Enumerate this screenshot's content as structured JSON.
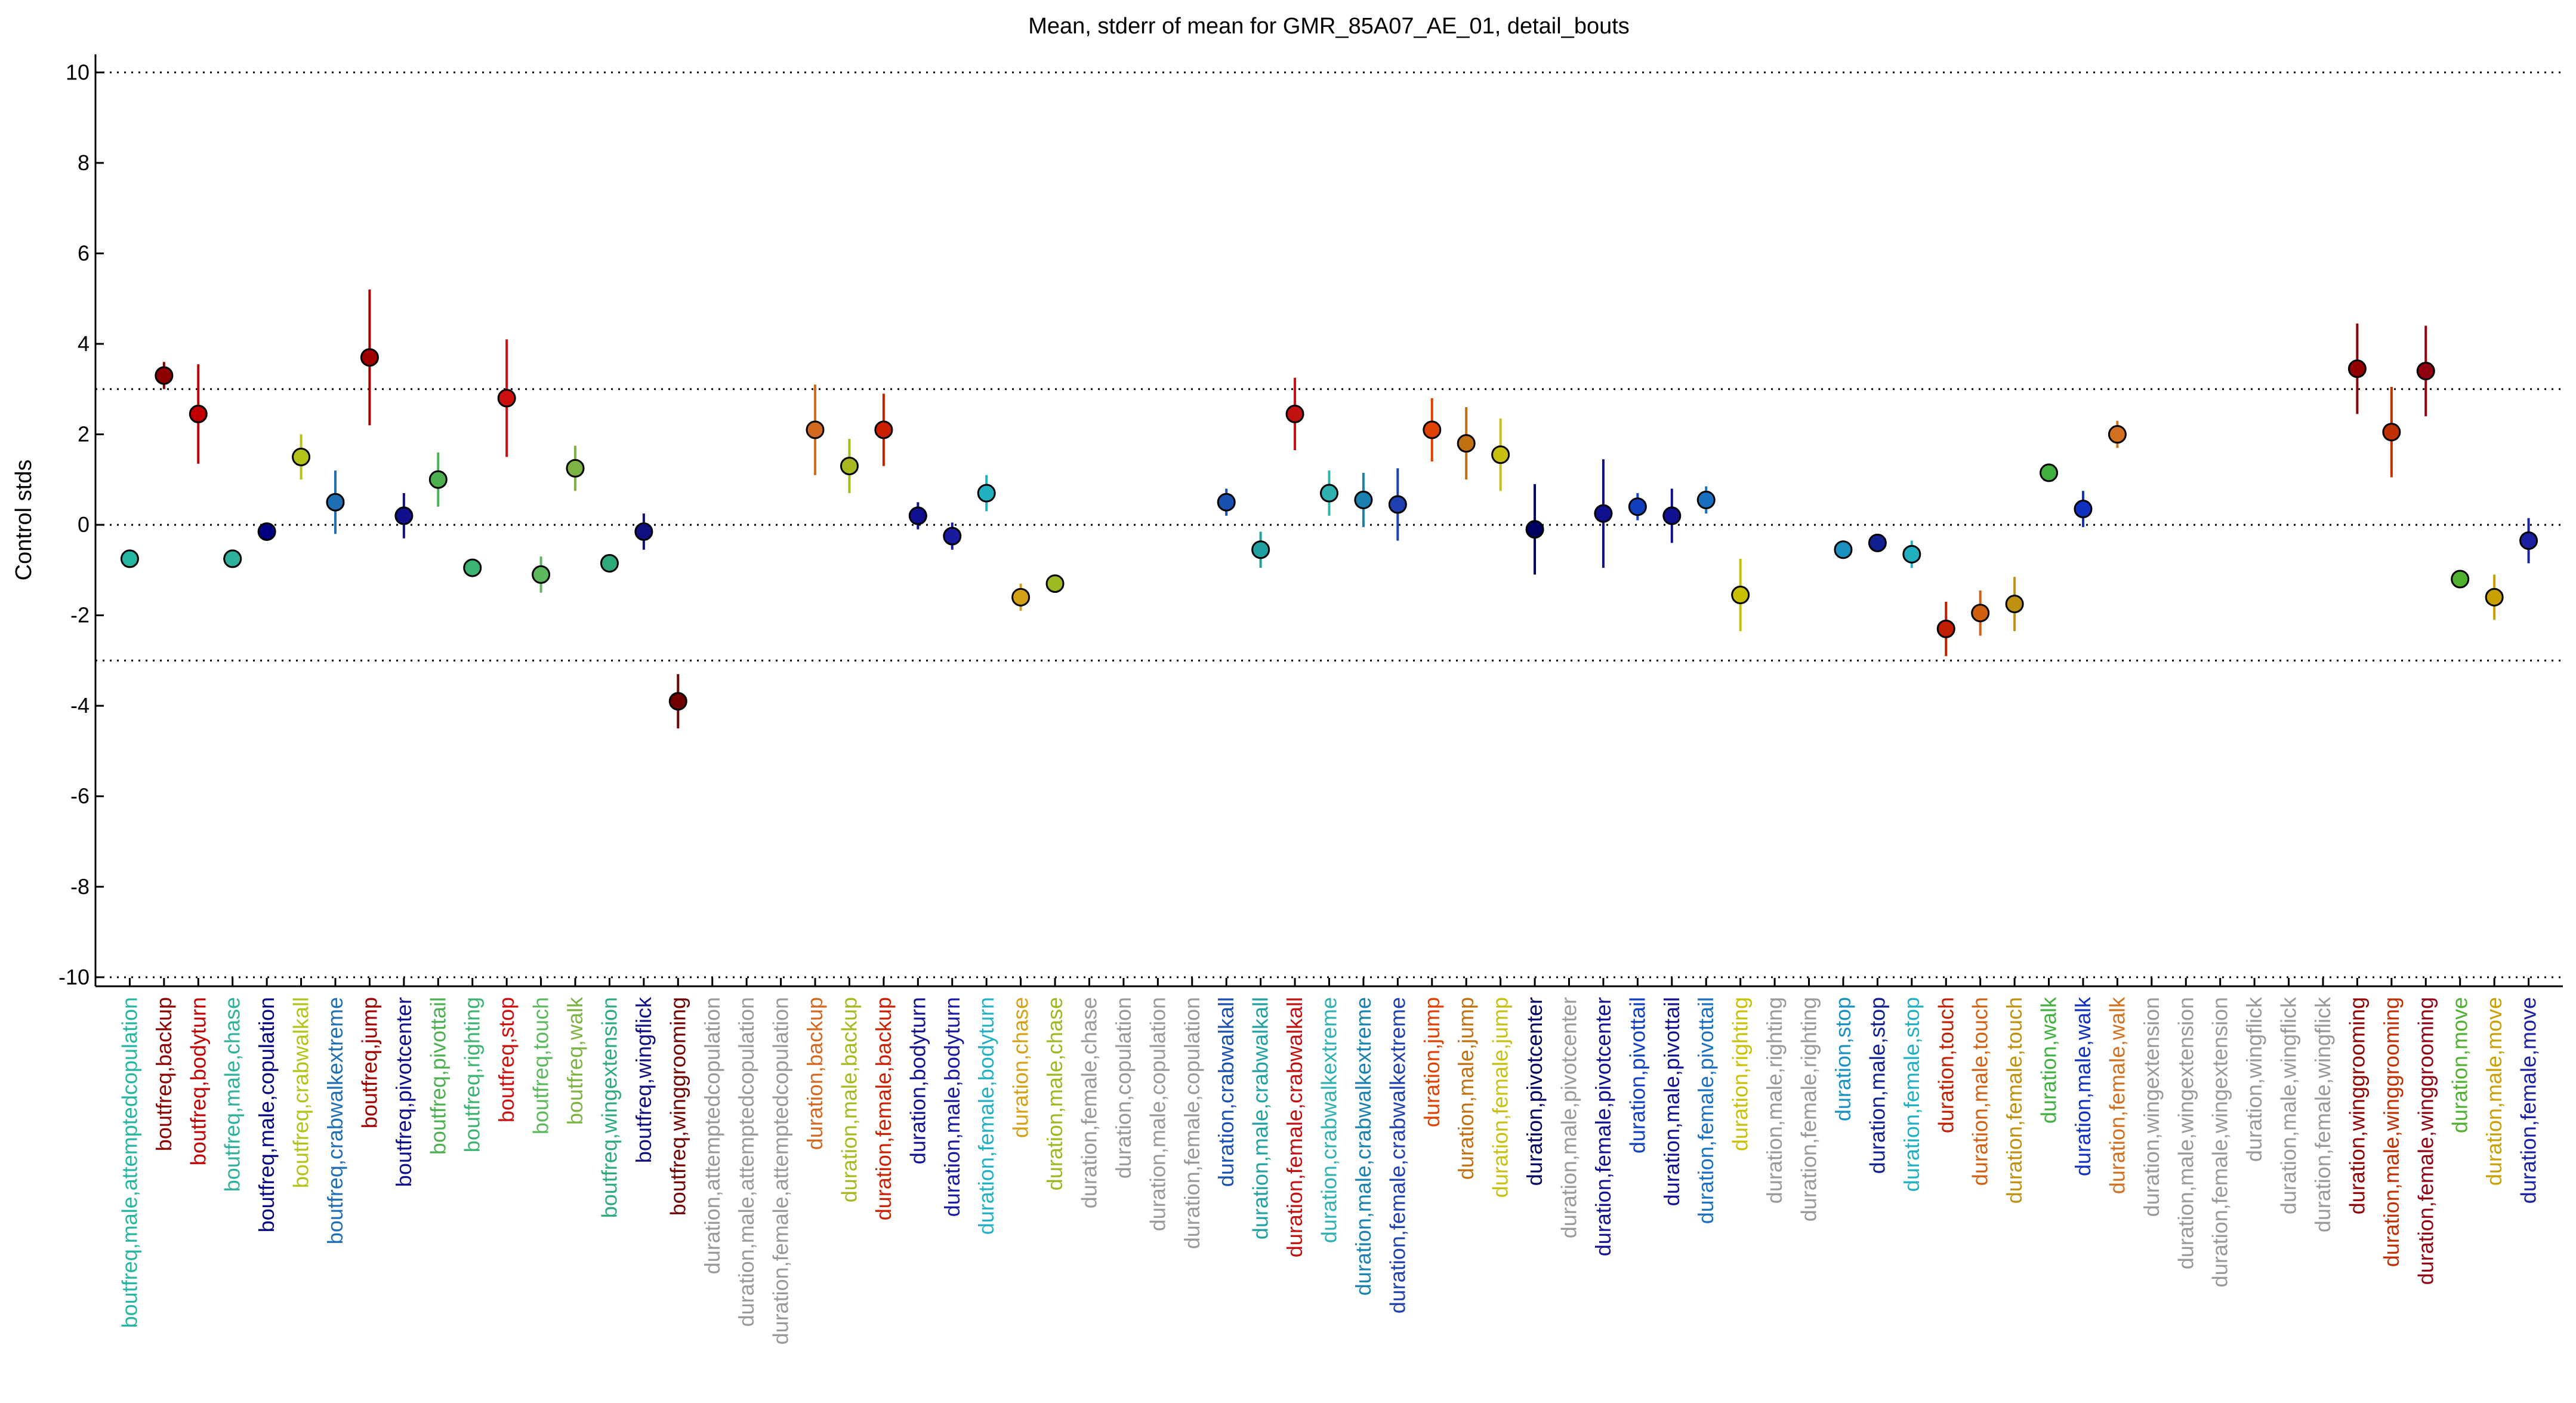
{
  "chart_data": {
    "type": "errorbar",
    "title": "Mean, stderr of mean for GMR_85A07_AE_01, detail_bouts",
    "y_label": "Control stds",
    "categories": [
      "boutfreq,male,attemptedcopulation",
      "boutfreq,backup",
      "boutfreq,bodyturn",
      "boutfreq,male,chase",
      "boutfreq,male,copulation",
      "boutfreq,crabwalkall",
      "boutfreq,crabwalkextreme",
      "boutfreq,jump",
      "boutfreq,pivotcenter",
      "boutfreq,pivottail",
      "boutfreq,righting",
      "boutfreq,stop",
      "boutfreq,touch",
      "boutfreq,walk",
      "boutfreq,wingextension",
      "boutfreq,wingflick",
      "boutfreq,winggrooming",
      "duration,attemptedcopulation",
      "duration,male,attemptedcopulation",
      "duration,female,attemptedcopulation",
      "duration,backup",
      "duration,male,backup",
      "duration,female,backup",
      "duration,bodyturn",
      "duration,male,bodyturn",
      "duration,female,bodyturn",
      "duration,chase",
      "duration,male,chase",
      "duration,female,chase",
      "duration,copulation",
      "duration,male,copulation",
      "duration,female,copulation",
      "duration,crabwalkall",
      "duration,male,crabwalkall",
      "duration,female,crabwalkall",
      "duration,crabwalkextreme",
      "duration,male,crabwalkextreme",
      "duration,female,crabwalkextreme",
      "duration,jump",
      "duration,male,jump",
      "duration,female,jump",
      "duration,pivotcenter",
      "duration,male,pivotcenter",
      "duration,female,pivotcenter",
      "duration,pivottail",
      "duration,male,pivottail",
      "duration,female,pivottail",
      "duration,righting",
      "duration,male,righting",
      "duration,female,righting",
      "duration,stop",
      "duration,male,stop",
      "duration,female,stop",
      "duration,touch",
      "duration,male,touch",
      "duration,female,touch",
      "duration,walk",
      "duration,male,walk",
      "duration,female,walk",
      "duration,wingextension",
      "duration,male,wingextension",
      "duration,female,wingextension",
      "duration,wingflick",
      "duration,male,wingflick",
      "duration,female,wingflick",
      "duration,winggrooming",
      "duration,male,winggrooming",
      "duration,female,winggrooming",
      "duration,move",
      "duration,male,move",
      "duration,female,move"
    ],
    "values": [
      -0.75,
      3.3,
      2.45,
      -0.75,
      -0.15,
      1.5,
      0.5,
      3.7,
      0.2,
      1.0,
      -0.95,
      2.8,
      -1.1,
      1.25,
      -0.85,
      -0.15,
      -3.9,
      null,
      null,
      null,
      2.1,
      1.3,
      2.1,
      0.2,
      -0.25,
      0.7,
      -1.6,
      -1.3,
      null,
      null,
      null,
      null,
      0.5,
      -0.55,
      2.45,
      0.7,
      0.55,
      0.45,
      2.1,
      1.8,
      1.55,
      -0.1,
      null,
      0.25,
      0.4,
      0.2,
      0.55,
      -1.55,
      null,
      null,
      -0.55,
      -0.4,
      -0.65,
      -2.3,
      -1.95,
      -1.75,
      1.15,
      0.35,
      2.0,
      null,
      null,
      null,
      null,
      null,
      null,
      3.45,
      2.05,
      3.4,
      -1.2,
      -1.6,
      -0.35
    ],
    "errors": [
      0.1,
      0.3,
      1.1,
      0.1,
      0.05,
      0.5,
      0.7,
      1.5,
      0.5,
      0.6,
      0.1,
      1.3,
      0.4,
      0.5,
      0.1,
      0.4,
      0.6,
      null,
      null,
      null,
      1.0,
      0.6,
      0.8,
      0.3,
      0.3,
      0.4,
      0.3,
      0.15,
      null,
      null,
      null,
      null,
      0.3,
      0.4,
      0.8,
      0.5,
      0.6,
      0.8,
      0.7,
      0.8,
      0.8,
      1.0,
      null,
      1.2,
      0.3,
      0.6,
      0.3,
      0.8,
      null,
      null,
      0.2,
      0.15,
      0.3,
      0.6,
      0.5,
      0.6,
      0.2,
      0.4,
      0.3,
      null,
      null,
      null,
      null,
      null,
      null,
      1.0,
      1.0,
      1.0,
      0.2,
      0.5,
      0.5
    ],
    "colors": [
      "#26b5a0",
      "#8b0000",
      "#c00000",
      "#2eb09a",
      "#000080",
      "#b5c21a",
      "#1f6fb5",
      "#a00000",
      "#10108a",
      "#4caf50",
      "#3cb371",
      "#cc1010",
      "#5cb85c",
      "#7cb342",
      "#2eaa7a",
      "#101080",
      "#700000",
      "#999999",
      "#999999",
      "#999999",
      "#d2691e",
      "#a8b820",
      "#c82000",
      "#101090",
      "#1a1aa0",
      "#20b0c0",
      "#d4a017",
      "#9aba20",
      "#999999",
      "#999999",
      "#999999",
      "#999999",
      "#1a50b0",
      "#20a0a0",
      "#c01010",
      "#30b0b0",
      "#1a80b0",
      "#2040b0",
      "#e04000",
      "#c07010",
      "#c8c010",
      "#000060",
      "#999999",
      "#101090",
      "#1040c0",
      "#101090",
      "#1a70c0",
      "#c8c000",
      "#999999",
      "#999999",
      "#1a90c0",
      "#102090",
      "#20b0c0",
      "#c02000",
      "#d06010",
      "#c09010",
      "#40b040",
      "#1030c0",
      "#d07020",
      "#999999",
      "#999999",
      "#999999",
      "#999999",
      "#999999",
      "#999999",
      "#900000",
      "#c03000",
      "#900010",
      "#50b030",
      "#c8a000",
      "#1a20a0"
    ],
    "xlim": [
      0,
      72
    ],
    "ylim": [
      -10.2,
      10.4
    ],
    "yticks": [
      -10,
      -8,
      -6,
      -4,
      -2,
      0,
      2,
      4,
      6,
      8,
      10
    ],
    "reference_lines": [
      -10,
      -3,
      0,
      3,
      10
    ]
  }
}
